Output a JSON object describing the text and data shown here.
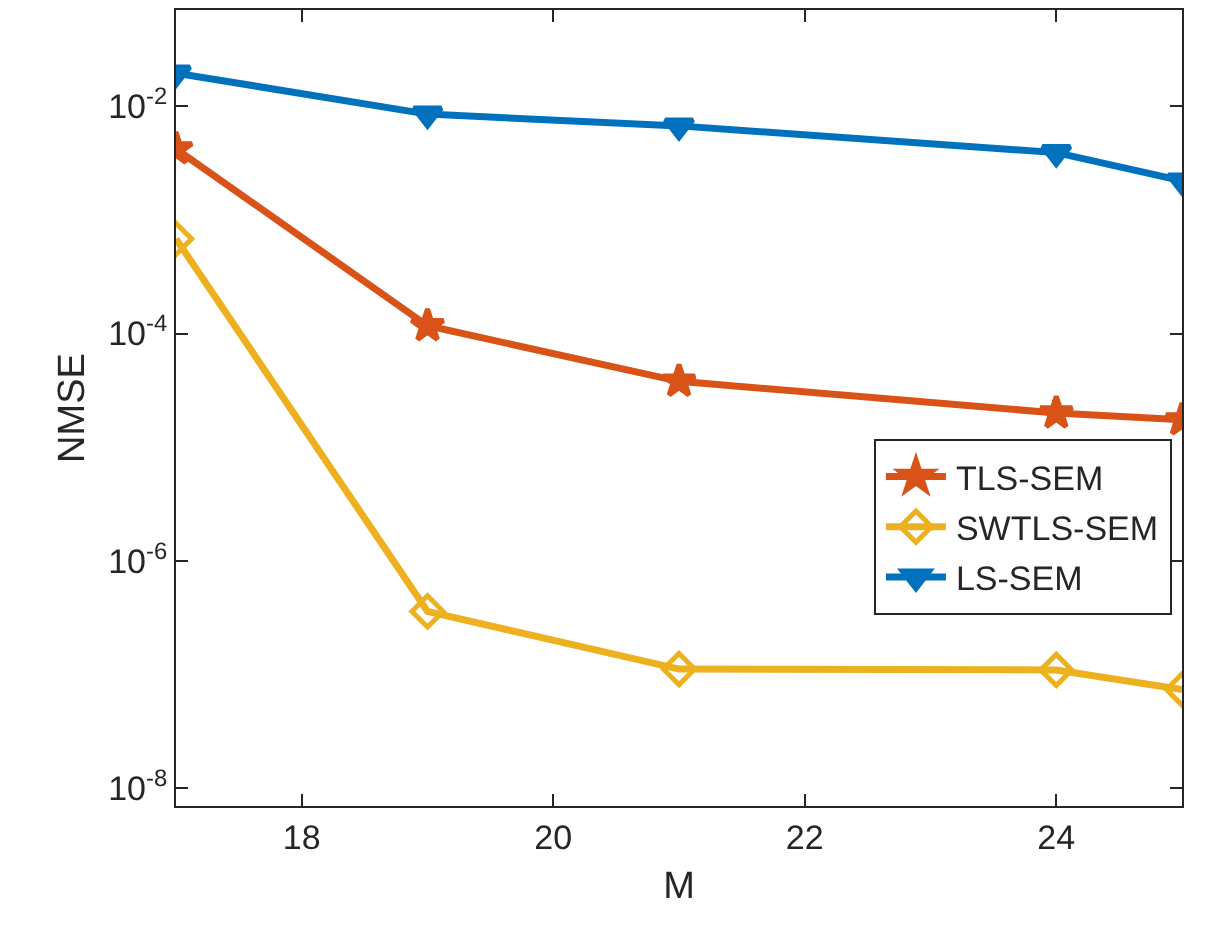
{
  "chart_data": {
    "type": "line",
    "xlabel": "M",
    "ylabel": "NMSE",
    "log": "y",
    "grid": false,
    "legend": "right",
    "line_style": "solid",
    "x": [
      17,
      19,
      21,
      24,
      25
    ],
    "xlim": [
      17,
      25
    ],
    "xticks": [
      18,
      20,
      22,
      24
    ],
    "ylim": [
      7e-09,
      0.07
    ],
    "yticks": [
      {
        "value": 1e-08,
        "label": "10$^{-8}$"
      },
      {
        "value": 1e-06,
        "label": "10$^{-6}$"
      },
      {
        "value": 0.0001,
        "label": "10$^{-4}$"
      },
      {
        "value": 0.01,
        "label": "10$^{-2}$"
      }
    ],
    "series": [
      {
        "name": "TLS-SEM",
        "color": "#d95319",
        "marker": "star",
        "values": [
          0.0042,
          0.000117,
          3.8e-05,
          2e-05,
          1.74e-05
        ]
      },
      {
        "name": "SWTLS-SEM",
        "color": "#edb120",
        "marker": "diamond",
        "values": [
          0.00068,
          3.6e-07,
          1.12e-07,
          1.1e-07,
          7.4e-08
        ]
      },
      {
        "name": "LS-SEM",
        "color": "#0072bd",
        "marker": "triangle",
        "values": [
          0.0195,
          0.0085,
          0.0067,
          0.0039,
          0.0022
        ]
      }
    ]
  }
}
